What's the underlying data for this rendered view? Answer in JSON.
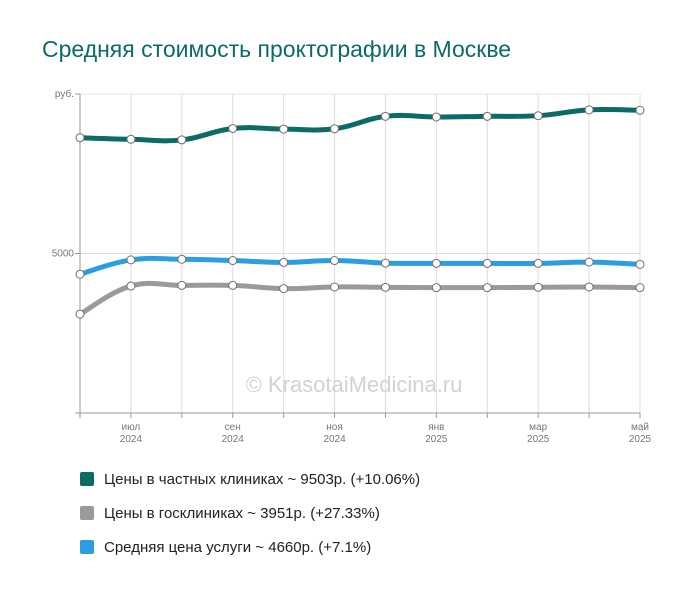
{
  "title": "Средняя стоимость проктографии в Москве",
  "watermark": "© KrasotaiMedicina.ru",
  "chart_data": {
    "type": "line",
    "y_unit_label": "руб.",
    "y_tick_labels": [
      "5000"
    ],
    "y_ticks": [
      5000
    ],
    "ylim": [
      0,
      10000
    ],
    "x": [
      "2024-06",
      "2024-07",
      "2024-08",
      "2024-09",
      "2024-10",
      "2024-11",
      "2024-12",
      "2025-01",
      "2025-02",
      "2025-03",
      "2025-04",
      "2025-05"
    ],
    "x_tick_labels": [
      {
        "at": "2024-07",
        "month": "июл",
        "year": "2024"
      },
      {
        "at": "2024-09",
        "month": "сен",
        "year": "2024"
      },
      {
        "at": "2024-11",
        "month": "ноя",
        "year": "2024"
      },
      {
        "at": "2025-01",
        "month": "янв",
        "year": "2025"
      },
      {
        "at": "2025-03",
        "month": "мар",
        "year": "2025"
      },
      {
        "at": "2025-05",
        "month": "май",
        "year": "2025"
      }
    ],
    "grid": true,
    "legend_position": "bottom",
    "series": [
      {
        "key": "private",
        "name": "Цены в частных клиниках ~ 9503р. (+10.06%)",
        "color": "#0b6b66",
        "values": [
          8630,
          8580,
          8560,
          8920,
          8900,
          8910,
          9300,
          9280,
          9300,
          9320,
          9503,
          9490
        ]
      },
      {
        "key": "public",
        "name": "Цены в госклиниках ~ 3951р. (+27.33%)",
        "color": "#9a9a9a",
        "values": [
          3100,
          3980,
          4000,
          4000,
          3900,
          3950,
          3940,
          3930,
          3930,
          3940,
          3951,
          3930
        ]
      },
      {
        "key": "average",
        "name": "Средняя цена услуги ~ 4660р. (+7.1%)",
        "color": "#2a9ee0",
        "values": [
          4350,
          4800,
          4820,
          4780,
          4720,
          4780,
          4700,
          4690,
          4690,
          4690,
          4730,
          4660
        ]
      }
    ]
  }
}
